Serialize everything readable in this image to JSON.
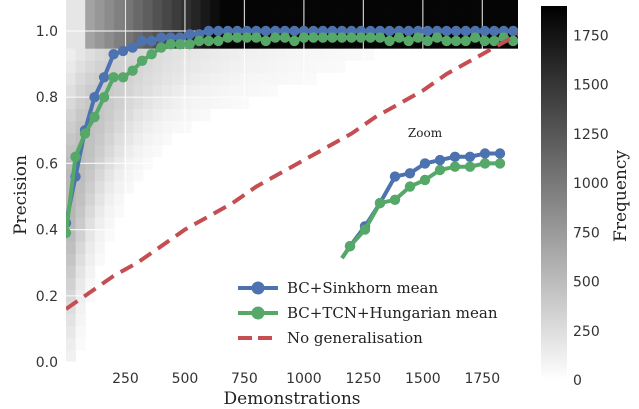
{
  "chart_data": {
    "type": "line",
    "title": "",
    "xlabel": "Demonstrations",
    "ylabel": "Precision",
    "xlim": [
      0,
      1900
    ],
    "ylim": [
      0,
      1.0
    ],
    "xticks": [
      "250",
      "500",
      "750",
      "1000",
      "1250",
      "1500",
      "1750"
    ],
    "yticks": [
      "0.0",
      "0.2",
      "0.4",
      "0.6",
      "0.8",
      "1.0"
    ],
    "series": [
      {
        "name": "BC+Sinkhorn mean",
        "color": "#4c72b0",
        "style": "solid-markers",
        "x": [
          0,
          40,
          80,
          120,
          160,
          200,
          240,
          280,
          320,
          360,
          400,
          440,
          480,
          520,
          560,
          600,
          640,
          680,
          720,
          760,
          800,
          840,
          880,
          920,
          960,
          1000,
          1040,
          1080,
          1120,
          1160,
          1200,
          1240,
          1280,
          1320,
          1360,
          1400,
          1440,
          1480,
          1520,
          1560,
          1600,
          1640,
          1680,
          1720,
          1760,
          1800,
          1840,
          1880
        ],
        "values": [
          0.42,
          0.56,
          0.7,
          0.8,
          0.86,
          0.93,
          0.94,
          0.95,
          0.97,
          0.97,
          0.98,
          0.98,
          0.98,
          0.99,
          0.99,
          1.0,
          1.0,
          1.0,
          1.0,
          1.0,
          1.0,
          1.0,
          1.0,
          1.0,
          1.0,
          1.0,
          1.0,
          1.0,
          1.0,
          1.0,
          1.0,
          1.0,
          1.0,
          1.0,
          1.0,
          1.0,
          1.0,
          1.0,
          1.0,
          1.0,
          1.0,
          1.0,
          1.0,
          1.0,
          1.0,
          1.0,
          1.0,
          1.0
        ]
      },
      {
        "name": "BC+TCN+Hungarian mean",
        "color": "#55a868",
        "style": "solid-markers",
        "x": [
          0,
          40,
          80,
          120,
          160,
          200,
          240,
          280,
          320,
          360,
          400,
          440,
          480,
          520,
          560,
          600,
          640,
          680,
          720,
          760,
          800,
          840,
          880,
          920,
          960,
          1000,
          1040,
          1080,
          1120,
          1160,
          1200,
          1240,
          1280,
          1320,
          1360,
          1400,
          1440,
          1480,
          1520,
          1560,
          1600,
          1640,
          1680,
          1720,
          1760,
          1800,
          1840,
          1880
        ],
        "values": [
          0.39,
          0.62,
          0.69,
          0.74,
          0.8,
          0.86,
          0.86,
          0.88,
          0.91,
          0.93,
          0.95,
          0.96,
          0.96,
          0.96,
          0.97,
          0.97,
          0.97,
          0.98,
          0.98,
          0.98,
          0.98,
          0.97,
          0.98,
          0.98,
          0.97,
          0.98,
          0.98,
          0.98,
          0.98,
          0.98,
          0.98,
          0.98,
          0.98,
          0.98,
          0.97,
          0.98,
          0.97,
          0.98,
          0.97,
          0.98,
          0.97,
          0.97,
          0.97,
          0.98,
          0.97,
          0.97,
          0.98,
          0.97
        ]
      },
      {
        "name": "No generalisation",
        "color": "#c44e52",
        "style": "dashed",
        "x": [
          0,
          100,
          200,
          300,
          400,
          500,
          600,
          700,
          800,
          900,
          1000,
          1100,
          1200,
          1300,
          1400,
          1500,
          1600,
          1700,
          1800,
          1900
        ],
        "values": [
          0.16,
          0.21,
          0.26,
          0.3,
          0.35,
          0.4,
          0.44,
          0.48,
          0.53,
          0.57,
          0.61,
          0.65,
          0.69,
          0.74,
          0.78,
          0.82,
          0.87,
          0.91,
          0.95,
          0.99
        ]
      }
    ],
    "zoom_inset": {
      "label": "Zoom",
      "series": [
        {
          "name": "BC+Sinkhorn mean",
          "color": "#4c72b0",
          "values": [
            0.35,
            0.41,
            0.48,
            0.56,
            0.57,
            0.6,
            0.61,
            0.62,
            0.62,
            0.63,
            0.63
          ]
        },
        {
          "name": "BC+TCN+Hungarian mean",
          "color": "#55a868",
          "values": [
            0.35,
            0.4,
            0.48,
            0.49,
            0.53,
            0.55,
            0.58,
            0.59,
            0.59,
            0.6,
            0.6
          ]
        }
      ]
    },
    "heatmap": {
      "colormap": "greys",
      "colorbar_label": "Frequency",
      "colorbar_range": [
        0,
        1900
      ],
      "colorbar_ticks": [
        "0",
        "250",
        "500",
        "750",
        "1000",
        "1250",
        "1500",
        "1750"
      ]
    },
    "legend": {
      "placement": "lower-right",
      "entries": [
        "BC+Sinkhorn mean",
        "BC+TCN+Hungarian mean",
        "No generalisation"
      ]
    },
    "grid": true
  }
}
